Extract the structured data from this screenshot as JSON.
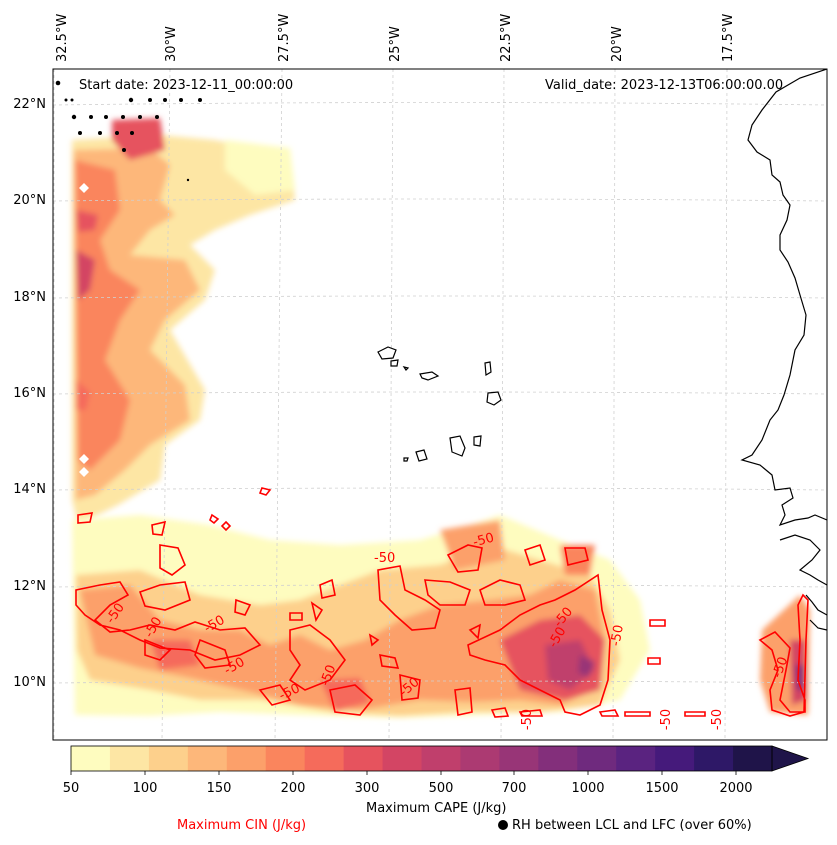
{
  "header": {
    "start_date": "Start date: 2023-12-11_00:00:00",
    "valid_date": "Valid_date: 2023-12-13T06:00:00.00"
  },
  "axes": {
    "longitude_labels": [
      "32.5°W",
      "30°W",
      "27.5°W",
      "25°W",
      "22.5°W",
      "20°W",
      "17.5°W"
    ],
    "latitude_labels": [
      "22°N",
      "20°N",
      "18°N",
      "16°N",
      "14°N",
      "12°N",
      "10°N"
    ]
  },
  "contour_labels": [
    "-50",
    "-50",
    "-50",
    "-50",
    "-50",
    "-50",
    "-50",
    "-50",
    "-50",
    "-50",
    "-50",
    "-50",
    "-50",
    "-50",
    "-50",
    "-50"
  ],
  "colorbar": {
    "ticks": [
      "50",
      "100",
      "150",
      "200",
      "300",
      "500",
      "700",
      "1000",
      "1500",
      "2000"
    ],
    "label": "Maximum CAPE (J/kg)",
    "colors": [
      "#fefcbf",
      "#fde6a4",
      "#fdd08c",
      "#fdb77a",
      "#fca06a",
      "#fa855d",
      "#f56b5b",
      "#e6535e",
      "#d34564",
      "#c03f6c",
      "#ac3a72",
      "#983577",
      "#832f7b",
      "#6f2a7e",
      "#5a2380",
      "#451a7b",
      "#2e1867",
      "#1f1449"
    ]
  },
  "legend": {
    "cin_label": "Maximum CIN (J/kg)",
    "rh_label": "RH between LCL and LFC (over 60%)",
    "cin_color": "#ff0000",
    "rh_marker": "black-dot"
  }
}
